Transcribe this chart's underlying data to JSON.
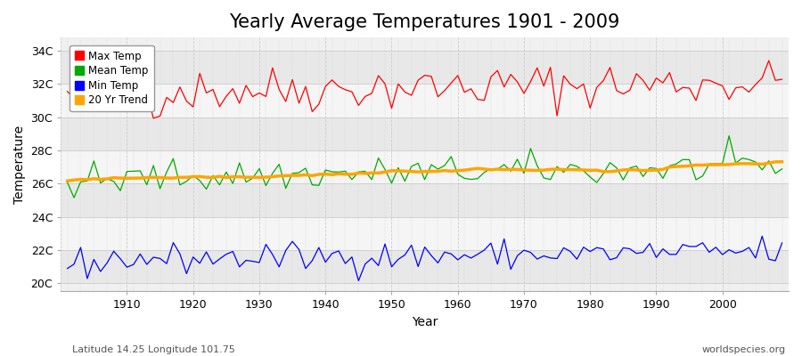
{
  "title": "Yearly Average Temperatures 1901 - 2009",
  "xlabel": "Year",
  "ylabel": "Temperature",
  "subtitle_left": "Latitude 14.25 Longitude 101.75",
  "subtitle_right": "worldspecies.org",
  "legend_labels": [
    "Max Temp",
    "Mean Temp",
    "Min Temp",
    "20 Yr Trend"
  ],
  "legend_colors": [
    "#ff0000",
    "#00aa00",
    "#0000ff",
    "#ffa500"
  ],
  "line_colors": {
    "max": "#ff0000",
    "mean": "#00aa00",
    "min": "#0000ff",
    "trend": "#ffa500"
  },
  "yticks": [
    20,
    22,
    24,
    26,
    28,
    30,
    32,
    34
  ],
  "ytick_labels": [
    "20C",
    "22C",
    "24C",
    "26C",
    "28C",
    "30C",
    "32C",
    "34C"
  ],
  "ylim": [
    19.5,
    34.8
  ],
  "xlim": [
    1900,
    2010
  ],
  "fig_bg_color": "#ffffff",
  "plot_bg_color": "#f0f0f0",
  "band_color_light": "#f5f5f5",
  "band_color_dark": "#e8e8e8",
  "grid_color": "#d0d0d0",
  "title_fontsize": 15,
  "axis_fontsize": 10,
  "tick_fontsize": 9,
  "max_base": 31.5,
  "mean_base": 26.3,
  "min_base": 21.4,
  "max_noise": 0.7,
  "mean_noise": 0.5,
  "min_noise": 0.45,
  "warming_trend": 0.6
}
